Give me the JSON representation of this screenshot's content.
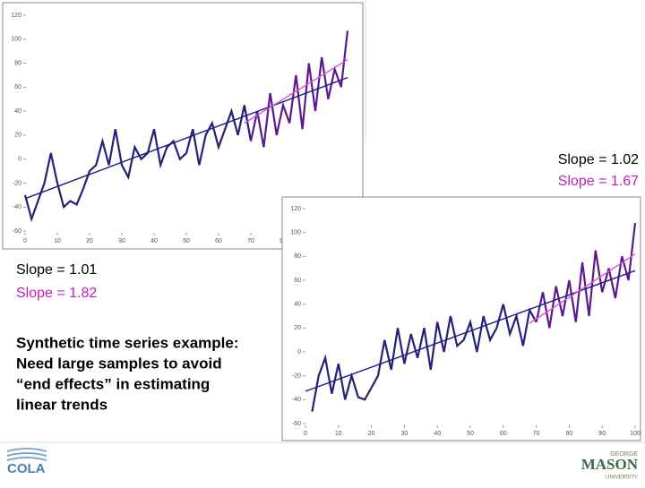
{
  "chart_data": [
    {
      "type": "line",
      "xlim": [
        0,
        100
      ],
      "ylim": [
        -60,
        120
      ],
      "xticks": [
        0,
        10,
        20,
        30,
        40,
        50,
        60,
        70,
        80,
        90,
        100
      ],
      "yticks": [
        -60,
        -40,
        -20,
        0,
        20,
        40,
        60,
        80,
        100,
        120
      ],
      "series": [
        {
          "color": "#25207a",
          "x": [
            0,
            2,
            4,
            6,
            8,
            10,
            12,
            14,
            16,
            18,
            20,
            22,
            24,
            26,
            28,
            30,
            32,
            34,
            36,
            38,
            40,
            42,
            44,
            46,
            48,
            50,
            52,
            54,
            56,
            58,
            60,
            62,
            64,
            66,
            68,
            70
          ],
          "values": [
            -30,
            -50,
            -35,
            -20,
            5,
            -20,
            -40,
            -35,
            -38,
            -25,
            -10,
            -5,
            15,
            -5,
            25,
            -5,
            -15,
            10,
            0,
            5,
            25,
            -5,
            10,
            15,
            0,
            5,
            25,
            -5,
            20,
            30,
            10,
            25,
            40,
            20,
            45,
            15
          ]
        },
        {
          "color": "#5b1a8c",
          "x": [
            70,
            72,
            74,
            76,
            78,
            80,
            82,
            84,
            86,
            88,
            90,
            92,
            94,
            96,
            98,
            100
          ],
          "values": [
            15,
            40,
            10,
            55,
            20,
            45,
            30,
            70,
            25,
            80,
            40,
            85,
            50,
            75,
            60,
            107
          ]
        },
        {
          "color": "#1a1a8c",
          "x": [
            0,
            100
          ],
          "values": [
            -33,
            68
          ]
        },
        {
          "color": "#e050e0",
          "x": [
            68,
            100
          ],
          "values": [
            30,
            83
          ]
        }
      ]
    },
    {
      "type": "line",
      "xlim": [
        0,
        100
      ],
      "ylim": [
        -60,
        120
      ],
      "xticks": [
        0,
        10,
        20,
        30,
        40,
        50,
        60,
        70,
        80,
        90,
        100
      ],
      "yticks": [
        -60,
        -40,
        -20,
        0,
        20,
        40,
        60,
        80,
        100,
        120
      ],
      "series": [
        {
          "color": "#25207a",
          "x": [
            2,
            4,
            6,
            8,
            10,
            12,
            14,
            16,
            18,
            20,
            22,
            24,
            26,
            28,
            30,
            32,
            34,
            36,
            38,
            40,
            42,
            44,
            46,
            48,
            50,
            52,
            54,
            56,
            58,
            60,
            62,
            64,
            66,
            68,
            70
          ],
          "values": [
            -50,
            -20,
            -5,
            -35,
            -10,
            -40,
            -20,
            -38,
            -40,
            -30,
            -20,
            10,
            -15,
            20,
            -10,
            15,
            -5,
            20,
            -15,
            25,
            0,
            30,
            5,
            10,
            25,
            0,
            30,
            10,
            20,
            40,
            15,
            30,
            5,
            35,
            25
          ]
        },
        {
          "color": "#5b1a8c",
          "x": [
            70,
            72,
            74,
            76,
            78,
            80,
            82,
            84,
            86,
            88,
            90,
            92,
            94,
            96,
            98,
            100
          ],
          "values": [
            25,
            50,
            20,
            55,
            30,
            60,
            25,
            75,
            30,
            85,
            50,
            70,
            45,
            80,
            60,
            108
          ]
        },
        {
          "color": "#1a1a8c",
          "x": [
            0,
            100
          ],
          "values": [
            -33,
            68
          ]
        },
        {
          "color": "#e050e0",
          "x": [
            68,
            100
          ],
          "values": [
            24,
            82
          ]
        }
      ]
    }
  ],
  "slide": {
    "right_slopes": [
      "Slope = 1.02",
      "Slope = 1.67"
    ],
    "left_slopes": [
      "Slope = 1.01",
      "Slope = 1.82"
    ],
    "caption": [
      "Synthetic time series example:",
      "Need large samples to avoid",
      "“end effects” in estimating",
      "linear trends"
    ],
    "logo_left": "COLA",
    "logo_right": [
      "GEORGE",
      "MASON",
      "UNIVERSITY"
    ]
  }
}
